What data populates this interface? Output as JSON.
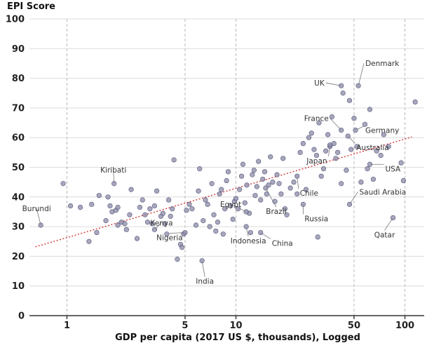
{
  "chart_data": {
    "type": "scatter",
    "ylabel": "EPI Score",
    "xlabel": "GDP per capita (2017 US $, thousands), Logged",
    "x_scale": "log",
    "xlim": [
      0.6,
      130
    ],
    "ylim": [
      0,
      100
    ],
    "x_ticks": [
      1,
      5,
      10,
      50,
      100
    ],
    "x_tick_labels": [
      "1",
      "5",
      "10",
      "50",
      "100"
    ],
    "y_ticks": [
      0,
      10,
      20,
      30,
      40,
      50,
      60,
      70,
      80,
      90,
      100
    ],
    "y_tick_labels": [
      "0",
      "10",
      "20",
      "30",
      "40",
      "50",
      "60",
      "70",
      "80",
      "90",
      "100"
    ],
    "grid": true,
    "colors": {
      "points": "#8e8eaa",
      "trend": "#d52a2a",
      "axis": "#333333"
    },
    "trendline": {
      "x": [
        0.65,
        110
      ],
      "y": [
        23.2,
        60.2
      ]
    },
    "labeled_points": [
      {
        "name": "Denmark",
        "x": 53,
        "y": 77.5
      },
      {
        "name": "UK",
        "x": 42,
        "y": 77.5
      },
      {
        "name": "France",
        "x": 42,
        "y": 62.5
      },
      {
        "name": "Germany",
        "x": 51,
        "y": 62.5
      },
      {
        "name": "Australia",
        "x": 46,
        "y": 60.5
      },
      {
        "name": "Japan",
        "x": 36,
        "y": 57.5
      },
      {
        "name": "USA",
        "x": 62,
        "y": 51
      },
      {
        "name": "Kiribati",
        "x": 1.9,
        "y": 44.5
      },
      {
        "name": "Chile",
        "x": 23,
        "y": 47
      },
      {
        "name": "Saudi Arabia",
        "x": 47,
        "y": 37.5
      },
      {
        "name": "Russia",
        "x": 25,
        "y": 37.5
      },
      {
        "name": "Brazil",
        "x": 15,
        "y": 43
      },
      {
        "name": "Egypt",
        "x": 11.5,
        "y": 35
      },
      {
        "name": "Burundi",
        "x": 0.7,
        "y": 30.5
      },
      {
        "name": "Kenya",
        "x": 3.3,
        "y": 29
      },
      {
        "name": "Nigeria",
        "x": 5,
        "y": 28
      },
      {
        "name": "Indonesia",
        "x": 11.5,
        "y": 30
      },
      {
        "name": "China",
        "x": 14,
        "y": 28
      },
      {
        "name": "Qatar",
        "x": 85,
        "y": 33
      },
      {
        "name": "India",
        "x": 6.3,
        "y": 18.5
      }
    ],
    "points": [
      [
        0.95,
        44.5
      ],
      [
        1.05,
        37
      ],
      [
        1.2,
        36.5
      ],
      [
        1.35,
        25
      ],
      [
        1.4,
        37.5
      ],
      [
        1.5,
        28
      ],
      [
        1.55,
        40.5
      ],
      [
        1.7,
        32
      ],
      [
        1.75,
        40
      ],
      [
        1.8,
        37
      ],
      [
        1.85,
        35
      ],
      [
        1.95,
        35.5
      ],
      [
        2.0,
        30.5
      ],
      [
        2.0,
        36.5
      ],
      [
        2.1,
        31.5
      ],
      [
        2.2,
        31
      ],
      [
        2.25,
        29
      ],
      [
        2.35,
        34
      ],
      [
        2.4,
        42.5
      ],
      [
        2.6,
        26
      ],
      [
        2.7,
        36.5
      ],
      [
        2.8,
        39
      ],
      [
        2.9,
        34
      ],
      [
        3.0,
        31.5
      ],
      [
        3.1,
        36
      ],
      [
        3.2,
        31
      ],
      [
        3.3,
        37
      ],
      [
        3.4,
        42
      ],
      [
        3.6,
        33.5
      ],
      [
        3.7,
        34.5
      ],
      [
        3.8,
        31
      ],
      [
        3.9,
        27.5
      ],
      [
        4.0,
        39
      ],
      [
        4.1,
        33.5
      ],
      [
        4.2,
        36
      ],
      [
        4.3,
        52.5
      ],
      [
        4.5,
        19
      ],
      [
        4.7,
        24
      ],
      [
        4.8,
        23
      ],
      [
        4.9,
        27.5
      ],
      [
        5.1,
        35.5
      ],
      [
        5.3,
        37.5
      ],
      [
        5.5,
        36
      ],
      [
        5.8,
        30.5
      ],
      [
        6.0,
        42
      ],
      [
        6.1,
        49.5
      ],
      [
        6.4,
        32
      ],
      [
        6.6,
        39
      ],
      [
        6.8,
        37.5
      ],
      [
        7.0,
        30
      ],
      [
        7.2,
        44.5
      ],
      [
        7.4,
        34
      ],
      [
        7.6,
        28.5
      ],
      [
        7.8,
        31.5
      ],
      [
        8.0,
        41
      ],
      [
        8.2,
        42.5
      ],
      [
        8.4,
        27.5
      ],
      [
        8.6,
        36
      ],
      [
        8.8,
        45.5
      ],
      [
        9.0,
        48.5
      ],
      [
        9.3,
        37
      ],
      [
        9.6,
        32.5
      ],
      [
        9.8,
        38.5
      ],
      [
        10.0,
        39.5
      ],
      [
        10.3,
        36
      ],
      [
        10.5,
        42.5
      ],
      [
        10.8,
        47
      ],
      [
        11.0,
        51
      ],
      [
        11.3,
        38
      ],
      [
        11.6,
        44
      ],
      [
        12.0,
        34.5
      ],
      [
        12.2,
        28
      ],
      [
        12.5,
        47.5
      ],
      [
        12.8,
        49
      ],
      [
        13.0,
        40.5
      ],
      [
        13.3,
        43.5
      ],
      [
        13.6,
        52
      ],
      [
        14.0,
        39
      ],
      [
        14.4,
        46
      ],
      [
        14.8,
        48.5
      ],
      [
        15.2,
        41
      ],
      [
        15.6,
        44
      ],
      [
        16.0,
        53.5
      ],
      [
        16.5,
        45
      ],
      [
        17.0,
        38.5
      ],
      [
        17.5,
        47.5
      ],
      [
        18.0,
        44.5
      ],
      [
        18.5,
        41
      ],
      [
        19.0,
        53
      ],
      [
        19.5,
        36
      ],
      [
        20.0,
        34
      ],
      [
        21.0,
        43
      ],
      [
        22.0,
        45
      ],
      [
        23.0,
        41
      ],
      [
        24.0,
        55
      ],
      [
        25.0,
        58
      ],
      [
        26.0,
        42.5
      ],
      [
        27.0,
        60
      ],
      [
        28.0,
        61.5
      ],
      [
        29.0,
        56
      ],
      [
        30.0,
        54
      ],
      [
        30.5,
        26.5
      ],
      [
        31.0,
        65
      ],
      [
        32.0,
        47
      ],
      [
        33.0,
        49.5
      ],
      [
        34.0,
        55.5
      ],
      [
        35.0,
        61
      ],
      [
        36.0,
        57
      ],
      [
        37.0,
        67
      ],
      [
        38.0,
        58
      ],
      [
        39.0,
        53
      ],
      [
        40.0,
        55
      ],
      [
        42.0,
        44.5
      ],
      [
        43.0,
        75
      ],
      [
        45.0,
        49
      ],
      [
        47.0,
        72.5
      ],
      [
        48.0,
        56
      ],
      [
        50.0,
        66.5
      ],
      [
        52.0,
        57
      ],
      [
        55.0,
        45
      ],
      [
        58.0,
        64.5
      ],
      [
        60.0,
        49.5
      ],
      [
        62.0,
        69.5
      ],
      [
        65.0,
        46
      ],
      [
        68.0,
        55.5
      ],
      [
        72.0,
        54
      ],
      [
        75.0,
        61
      ],
      [
        80.0,
        57
      ],
      [
        95.0,
        51.5
      ],
      [
        98.0,
        45.5
      ],
      [
        115.0,
        72
      ]
    ]
  }
}
